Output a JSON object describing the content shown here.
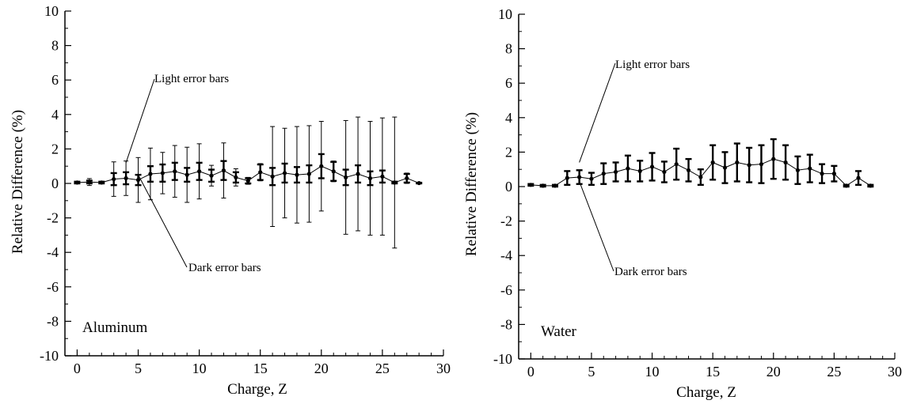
{
  "chart_data": [
    {
      "type": "line",
      "panel_label": "Aluminum",
      "xlabel": "Charge, Z",
      "ylabel": "Relative Difference (%)",
      "xlim": [
        -1,
        30
      ],
      "ylim": [
        -10,
        10
      ],
      "xticks": [
        0,
        5,
        10,
        15,
        20,
        25,
        30
      ],
      "yticks": [
        -10,
        -8,
        -6,
        -4,
        -2,
        0,
        2,
        4,
        6,
        8,
        10
      ],
      "annotations": [
        {
          "text": "Light error bars",
          "points_to_x": 4,
          "points_to_y": 1.2
        },
        {
          "text": "Dark error bars",
          "points_to_x": 5,
          "points_to_y": 0.5
        }
      ],
      "x": [
        0,
        1,
        2,
        3,
        4,
        5,
        6,
        7,
        8,
        9,
        10,
        11,
        12,
        13,
        14,
        15,
        16,
        17,
        18,
        19,
        20,
        21,
        22,
        23,
        24,
        25,
        26,
        27,
        28
      ],
      "series": [
        {
          "values": [
            0.05,
            0.08,
            0.05,
            0.25,
            0.3,
            0.2,
            0.55,
            0.6,
            0.7,
            0.5,
            0.7,
            0.45,
            0.75,
            0.35,
            0.15,
            0.65,
            0.4,
            0.6,
            0.5,
            0.55,
            1.0,
            0.7,
            0.35,
            0.55,
            0.3,
            0.4,
            0.05,
            0.3,
            0.02
          ],
          "dark_err": [
            0.05,
            0.08,
            0.05,
            0.35,
            0.35,
            0.3,
            0.45,
            0.5,
            0.5,
            0.4,
            0.5,
            0.35,
            0.55,
            0.3,
            0.15,
            0.45,
            0.5,
            0.55,
            0.45,
            0.5,
            0.7,
            0.55,
            0.45,
            0.5,
            0.4,
            0.35,
            0.05,
            0.25,
            0.02
          ],
          "light_err": [
            0.05,
            0.2,
            0.05,
            1.0,
            1.0,
            1.3,
            1.5,
            1.2,
            1.5,
            1.6,
            1.6,
            0.6,
            1.6,
            0.5,
            0.2,
            0.5,
            2.9,
            2.6,
            2.8,
            2.8,
            2.6,
            0.6,
            3.3,
            3.3,
            3.3,
            3.4,
            3.8,
            0.3,
            0.02
          ]
        }
      ]
    },
    {
      "type": "line",
      "panel_label": "Water",
      "xlabel": "Charge, Z",
      "ylabel": "Relative Difference (%)",
      "xlim": [
        -1,
        30
      ],
      "ylim": [
        -10,
        10
      ],
      "xticks": [
        0,
        5,
        10,
        15,
        20,
        25,
        30
      ],
      "yticks": [
        -10,
        -8,
        -6,
        -4,
        -2,
        0,
        2,
        4,
        6,
        8,
        10
      ],
      "annotations": [
        {
          "text": "Light error bars",
          "points_to_x": 4,
          "points_to_y": 1.4
        },
        {
          "text": "Dark error bars",
          "points_to_x": 4,
          "points_to_y": 0.3
        }
      ],
      "x": [
        0,
        1,
        2,
        3,
        4,
        5,
        6,
        7,
        8,
        9,
        10,
        11,
        12,
        13,
        14,
        15,
        16,
        17,
        18,
        19,
        20,
        21,
        22,
        23,
        24,
        25,
        26,
        27,
        28
      ],
      "series": [
        {
          "values": [
            0.1,
            0.05,
            0.05,
            0.5,
            0.55,
            0.45,
            0.75,
            0.85,
            1.05,
            0.9,
            1.15,
            0.85,
            1.3,
            0.95,
            0.55,
            1.4,
            1.1,
            1.4,
            1.25,
            1.3,
            1.6,
            1.4,
            0.95,
            1.05,
            0.75,
            0.75,
            0.05,
            0.5,
            0.05
          ],
          "dark_err": [
            0.05,
            0.05,
            0.05,
            0.4,
            0.4,
            0.35,
            0.6,
            0.55,
            0.75,
            0.6,
            0.8,
            0.6,
            0.9,
            0.65,
            0.45,
            1.0,
            0.9,
            1.1,
            1.0,
            1.1,
            1.15,
            1.0,
            0.8,
            0.8,
            0.55,
            0.45,
            0.05,
            0.4,
            0.05
          ]
        }
      ]
    }
  ]
}
